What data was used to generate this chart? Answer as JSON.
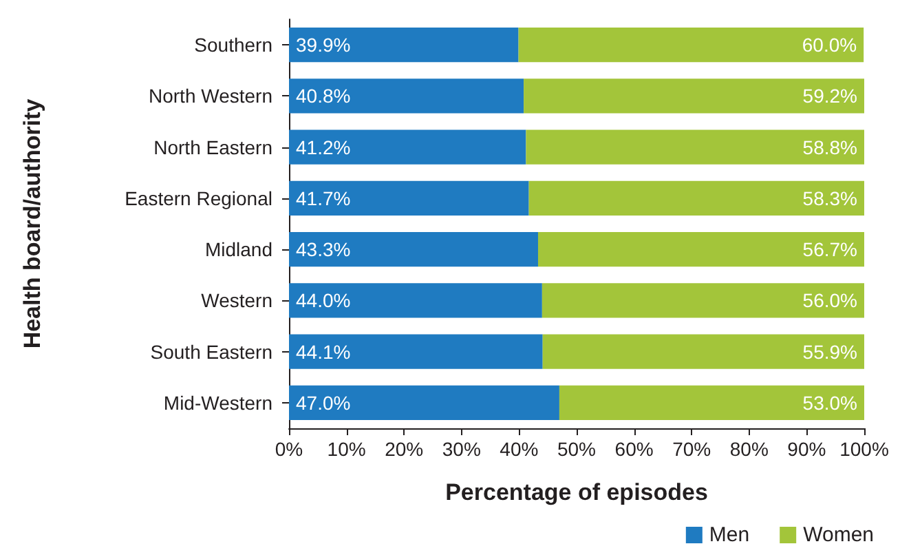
{
  "chart_data": {
    "type": "bar",
    "orientation": "horizontal",
    "stacked": true,
    "xlabel": "Percentage of episodes",
    "ylabel": "Health board/authority",
    "categories": [
      "Southern",
      "North Western",
      "North Eastern",
      "Eastern Regional",
      "Midland",
      "Western",
      "South Eastern",
      "Mid-Western"
    ],
    "series": [
      {
        "name": "Men",
        "color": "#1f7bc1",
        "values": [
          39.9,
          40.8,
          41.2,
          41.7,
          43.3,
          44.0,
          44.1,
          47.0
        ],
        "value_labels": [
          "39.9%",
          "40.8%",
          "41.2%",
          "41.7%",
          "43.3%",
          "44.0%",
          "44.1%",
          "47.0%"
        ]
      },
      {
        "name": "Women",
        "color": "#a3c53a",
        "values": [
          60.0,
          59.2,
          58.8,
          58.3,
          56.7,
          56.0,
          55.9,
          53.0
        ],
        "value_labels": [
          "60.0%",
          "59.2%",
          "58.8%",
          "58.3%",
          "56.7%",
          "56.0%",
          "55.9%",
          "53.0%"
        ]
      }
    ],
    "xlim": [
      0,
      100
    ],
    "xticks": [
      {
        "value": 0,
        "label": "0%"
      },
      {
        "value": 10,
        "label": "10%"
      },
      {
        "value": 20,
        "label": "20%"
      },
      {
        "value": 30,
        "label": "30%"
      },
      {
        "value": 40,
        "label": "40%"
      },
      {
        "value": 50,
        "label": "50%"
      },
      {
        "value": 60,
        "label": "60%"
      },
      {
        "value": 70,
        "label": "70%"
      },
      {
        "value": 80,
        "label": "80%"
      },
      {
        "value": 90,
        "label": "90%"
      },
      {
        "value": 100,
        "label": "100%"
      }
    ],
    "grid": false,
    "legend": "bottom right"
  }
}
